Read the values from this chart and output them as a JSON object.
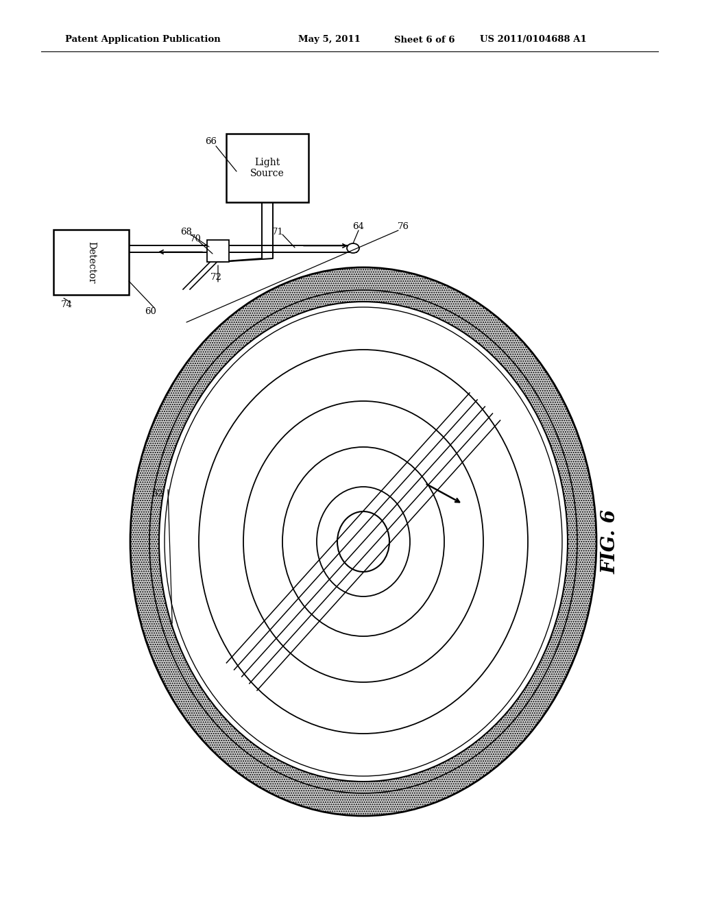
{
  "background_color": "#ffffff",
  "header_text": "Patent Application Publication",
  "header_date": "May 5, 2011",
  "header_sheet": "Sheet 6 of 6",
  "header_patent": "US 2011/0104688 A1",
  "fig_label": "FIG. 6",
  "light_source_label": "Light\nSource",
  "detector_label": "Detector"
}
